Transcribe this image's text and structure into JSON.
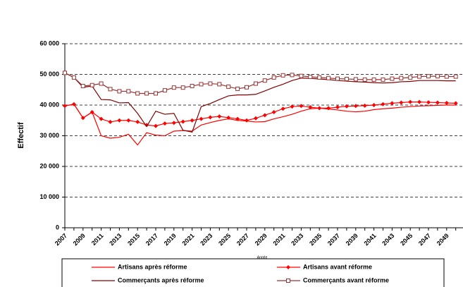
{
  "chart_data": {
    "type": "line",
    "y_label": "Effectif",
    "x_label": "Année",
    "categories": [
      "2007",
      null,
      "2009",
      null,
      "2011",
      null,
      "2013",
      null,
      "2015",
      null,
      "2017",
      null,
      "2019",
      null,
      "2021",
      null,
      "2023",
      null,
      "2025",
      null,
      "2027",
      null,
      "2029",
      null,
      "2031",
      null,
      "2033",
      null,
      "2035",
      null,
      "2037",
      null,
      "2039",
      null,
      "2041",
      null,
      "2043",
      null,
      "2045",
      null,
      "2047",
      null,
      "2049",
      null
    ],
    "ylim": [
      0,
      60000
    ],
    "yticks": [
      0,
      {
        "value": 10000,
        "label": "10 000"
      },
      {
        "value": 20000,
        "label": "20 000"
      },
      {
        "value": 30000,
        "label": "30 000"
      },
      {
        "value": 40000,
        "label": "40 000"
      },
      {
        "value": 50000,
        "label": "50 000"
      },
      {
        "value": 60000,
        "label": "60 000"
      }
    ],
    "grid": true,
    "series": [
      {
        "name": "Artisans après réforme",
        "color": "#ff0000",
        "marker": "none",
        "values": [
          39700,
          40300,
          35800,
          37700,
          30000,
          29200,
          29500,
          30500,
          27000,
          31000,
          30200,
          30000,
          31500,
          31700,
          31500,
          33500,
          34300,
          35000,
          35500,
          35000,
          34800,
          34500,
          34600,
          35500,
          36200,
          37000,
          38000,
          38800,
          39000,
          38700,
          38400,
          38000,
          37800,
          38000,
          38500,
          38800,
          39000,
          39300,
          39500,
          39700,
          39800,
          39900,
          40000,
          40000
        ]
      },
      {
        "name": "Artisans avant réforme",
        "color": "#ff0000",
        "marker": "diamond",
        "values": [
          39700,
          40300,
          35800,
          37700,
          35500,
          34500,
          35000,
          35000,
          34500,
          33500,
          33200,
          34000,
          34200,
          34600,
          35000,
          35500,
          36000,
          36300,
          35900,
          35500,
          35000,
          35700,
          36700,
          37700,
          38800,
          39500,
          39700,
          39300,
          39000,
          39000,
          39300,
          39600,
          39700,
          39800,
          40000,
          40300,
          40600,
          40800,
          41000,
          41000,
          40900,
          40800,
          40700,
          40600
        ]
      },
      {
        "name": "Commerçants après réforme",
        "color": "#800000",
        "marker": "none",
        "values": [
          50500,
          49000,
          45800,
          46200,
          41800,
          41700,
          40700,
          40800,
          37300,
          33000,
          38000,
          37000,
          37300,
          31800,
          31200,
          39500,
          40500,
          41800,
          43000,
          43300,
          43300,
          43500,
          44600,
          45800,
          46800,
          48000,
          48800,
          48700,
          48500,
          48300,
          48000,
          47800,
          47600,
          47500,
          47300,
          47200,
          47300,
          47600,
          47700,
          48000,
          48000,
          48000,
          47900,
          47900
        ]
      },
      {
        "name": "Commerçants avant réforme",
        "color": "#993333",
        "marker": "square",
        "values": [
          50500,
          49000,
          46200,
          46500,
          47000,
          45200,
          44500,
          44500,
          43800,
          43800,
          43800,
          44800,
          45700,
          45700,
          46200,
          46800,
          47000,
          46800,
          46000,
          45300,
          45800,
          47000,
          48000,
          49000,
          49700,
          49800,
          49500,
          49200,
          49000,
          48800,
          48600,
          48500,
          48400,
          48300,
          48300,
          48300,
          48600,
          48800,
          49000,
          49300,
          49400,
          49400,
          49300,
          49300
        ]
      }
    ]
  }
}
